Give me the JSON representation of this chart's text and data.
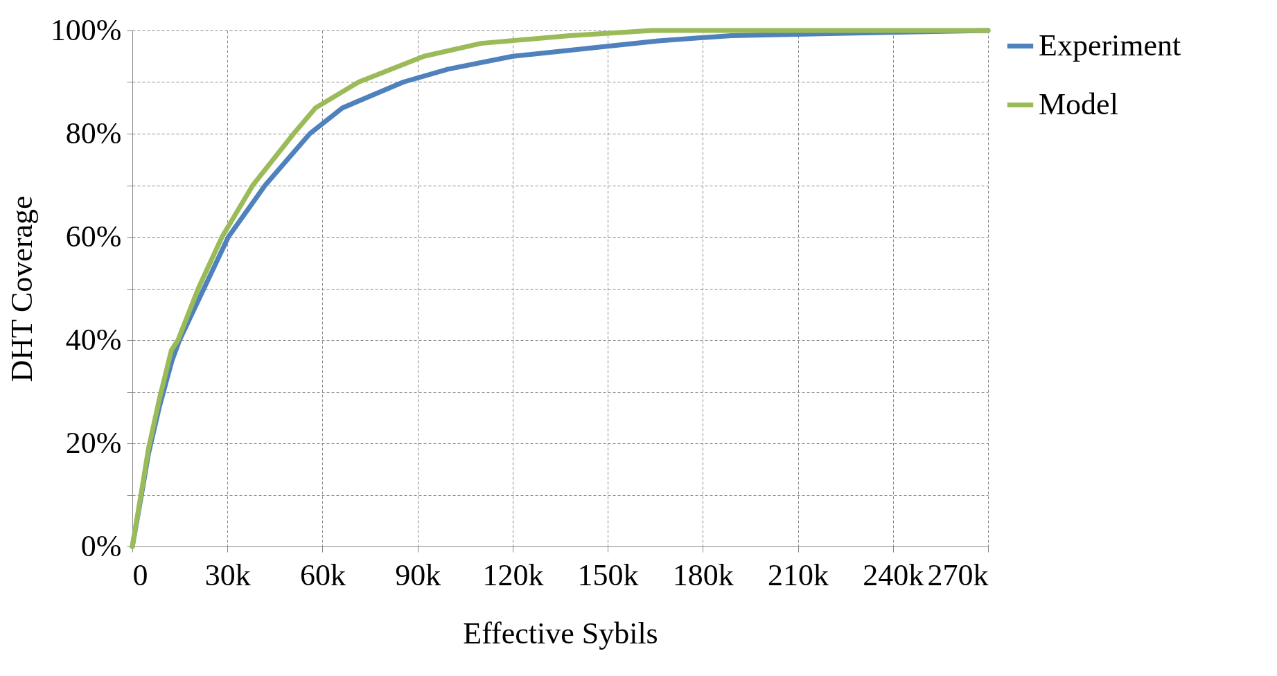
{
  "chart_data": {
    "type": "line",
    "xlabel": "Effective Sybils",
    "ylabel": "DHT Coverage",
    "xlim": [
      0,
      270000
    ],
    "xticks": [
      {
        "value": 0,
        "label": "0"
      },
      {
        "value": 30000,
        "label": "30k"
      },
      {
        "value": 60000,
        "label": "60k"
      },
      {
        "value": 90000,
        "label": "90k"
      },
      {
        "value": 120000,
        "label": "120k"
      },
      {
        "value": 150000,
        "label": "150k"
      },
      {
        "value": 180000,
        "label": "180k"
      },
      {
        "value": 210000,
        "label": "210k"
      },
      {
        "value": 240000,
        "label": "240k"
      },
      {
        "value": 270000,
        "label": "270k"
      }
    ],
    "ylim": [
      0,
      100
    ],
    "yticks": [
      {
        "value": 0,
        "label": "0%"
      },
      {
        "value": 10,
        "label": null
      },
      {
        "value": 20,
        "label": "20%"
      },
      {
        "value": 30,
        "label": null
      },
      {
        "value": 40,
        "label": "40%"
      },
      {
        "value": 50,
        "label": null
      },
      {
        "value": 60,
        "label": "60%"
      },
      {
        "value": 70,
        "label": null
      },
      {
        "value": 80,
        "label": "80%"
      },
      {
        "value": 90,
        "label": null
      },
      {
        "value": 100,
        "label": "100%"
      }
    ],
    "grid": true,
    "legend": "right",
    "marker": "none",
    "line_style": "solid",
    "series": [
      {
        "name": "Experiment",
        "color": "#4f81bd",
        "x": [
          0,
          2600,
          5100,
          8500,
          12500,
          14900,
          22600,
          30300,
          41900,
          56000,
          66300,
          85500,
          99600,
          120000,
          151000,
          166000,
          189000,
          228000,
          270000
        ],
        "values": [
          0,
          9,
          18,
          27,
          36,
          40,
          50,
          60,
          70,
          80,
          85,
          90,
          92.5,
          95,
          97,
          98,
          99,
          99.5,
          100
        ]
      },
      {
        "name": "Model",
        "color": "#9bbb59",
        "x": [
          0,
          2600,
          5100,
          8500,
          12300,
          14400,
          20800,
          28300,
          38000,
          50900,
          57800,
          71400,
          92000,
          110000,
          138000,
          164000,
          270000
        ],
        "values": [
          0,
          9.6,
          19,
          28.5,
          38,
          40,
          50,
          60,
          70,
          80,
          85,
          90,
          95,
          97.5,
          99,
          100,
          100
        ]
      }
    ]
  }
}
